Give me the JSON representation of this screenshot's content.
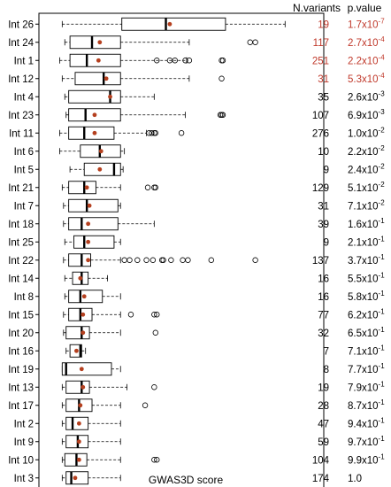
{
  "chart_data": {
    "type": "boxplot",
    "xlabel": "GWAS3D score",
    "x_ticks": [
      0,
      5,
      10,
      15,
      20
    ],
    "xlim": [
      0,
      20
    ],
    "column_headers": {
      "n_variants": "N.variants",
      "p_value": "p.value"
    },
    "colors": {
      "box_stroke": "#000000",
      "mean_dot": "#b5401f",
      "significant_text": "#c0392b",
      "normal_text": "#000000"
    },
    "rows": [
      {
        "label": "Int 26",
        "n": "19",
        "p_base": "1.7x10",
        "p_exp": "-7",
        "significant": true,
        "whislo": 0.5,
        "q1": 5.1,
        "median": 8.5,
        "q3": 13.1,
        "whishi": 17.7,
        "mean": 8.8,
        "outliers": []
      },
      {
        "label": "Int 24",
        "n": "117",
        "p_base": "2.7x10",
        "p_exp": "-4",
        "significant": true,
        "whislo": 0.7,
        "q1": 1.1,
        "median": 2.8,
        "q3": 5.0,
        "whishi": 10.3,
        "mean": 3.4,
        "outliers": [
          15.0,
          15.4
        ]
      },
      {
        "label": "Int 1",
        "n": "251",
        "p_base": "2.2x10",
        "p_exp": "-4",
        "significant": true,
        "whislo": 0.3,
        "q1": 1.1,
        "median": 2.4,
        "q3": 5.0,
        "whishi": 10.1,
        "mean": 3.3,
        "outliers": [
          7.8,
          8.8,
          9.2,
          10.0,
          10.3,
          12.8,
          12.9
        ]
      },
      {
        "label": "Int 12",
        "n": "31",
        "p_base": "5.3x10",
        "p_exp": "-4",
        "significant": true,
        "whislo": 0.5,
        "q1": 1.5,
        "median": 3.7,
        "q3": 5.0,
        "whishi": 10.3,
        "mean": 3.9,
        "outliers": [
          12.8
        ]
      },
      {
        "label": "Int 4",
        "n": "35",
        "p_base": "2.6x10",
        "p_exp": "-3",
        "significant": false,
        "whislo": 0.7,
        "q1": 1.0,
        "median": 4.2,
        "q3": 5.0,
        "whishi": 7.6,
        "mean": 4.2,
        "outliers": []
      },
      {
        "label": "Int 23",
        "n": "107",
        "p_base": "6.9x10",
        "p_exp": "-3",
        "significant": false,
        "whislo": 0.8,
        "q1": 1.0,
        "median": 2.3,
        "q3": 5.0,
        "whishi": 10.0,
        "mean": 3.0,
        "outliers": [
          12.7,
          12.8,
          12.9
        ]
      },
      {
        "label": "Int 11",
        "n": "276",
        "p_base": "1.0x10",
        "p_exp": "-2",
        "significant": false,
        "whislo": 0.3,
        "q1": 1.0,
        "median": 2.2,
        "q3": 4.5,
        "whishi": 7.0,
        "mean": 3.0,
        "outliers": [
          7.2,
          7.4,
          7.6,
          7.7,
          9.7
        ]
      },
      {
        "label": "Int 6",
        "n": "10",
        "p_base": "2.2x10",
        "p_exp": "-2",
        "significant": false,
        "whislo": 0.3,
        "q1": 1.9,
        "median": 3.4,
        "q3": 5.0,
        "whishi": 5.3,
        "mean": 3.5,
        "outliers": []
      },
      {
        "label": "Int 5",
        "n": "9",
        "p_base": "2.4x10",
        "p_exp": "-2",
        "significant": false,
        "whislo": 1.1,
        "q1": 2.2,
        "median": 4.5,
        "q3": 5.0,
        "whishi": 5.2,
        "mean": 3.4,
        "outliers": []
      },
      {
        "label": "Int 21",
        "n": "129",
        "p_base": "5.1x10",
        "p_exp": "-2",
        "significant": false,
        "whislo": 0.5,
        "q1": 1.0,
        "median": 2.2,
        "q3": 3.1,
        "whishi": 5.0,
        "mean": 2.4,
        "outliers": [
          7.1,
          7.6,
          7.7
        ]
      },
      {
        "label": "Int 7",
        "n": "31",
        "p_base": "7.1x10",
        "p_exp": "-2",
        "significant": false,
        "whislo": 0.6,
        "q1": 1.0,
        "median": 2.4,
        "q3": 4.8,
        "whishi": 5.0,
        "mean": 2.6,
        "outliers": []
      },
      {
        "label": "Int 18",
        "n": "39",
        "p_base": "1.6x10",
        "p_exp": "-1",
        "significant": false,
        "whislo": 0.6,
        "q1": 1.0,
        "median": 2.0,
        "q3": 4.8,
        "whishi": 7.6,
        "mean": 2.5,
        "outliers": []
      },
      {
        "label": "Int 25",
        "n": "9",
        "p_base": "2.1x10",
        "p_exp": "-1",
        "significant": false,
        "whislo": 0.7,
        "q1": 1.4,
        "median": 2.2,
        "q3": 4.5,
        "whishi": 5.0,
        "mean": 2.5,
        "outliers": []
      },
      {
        "label": "Int 22",
        "n": "137",
        "p_base": "3.7x10",
        "p_exp": "-1",
        "significant": false,
        "whislo": 0.6,
        "q1": 1.0,
        "median": 2.0,
        "q3": 2.7,
        "whishi": 5.0,
        "mean": 2.5,
        "outliers": [
          5.3,
          5.7,
          6.3,
          7.0,
          7.5,
          8.2,
          8.3,
          8.9,
          9.8,
          10.2,
          12.0,
          15.4
        ]
      },
      {
        "label": "Int 14",
        "n": "16",
        "p_base": "5.5x10",
        "p_exp": "-1",
        "significant": false,
        "whislo": 0.7,
        "q1": 1.3,
        "median": 2.0,
        "q3": 2.5,
        "whishi": 4.0,
        "mean": 1.9,
        "outliers": []
      },
      {
        "label": "Int 8",
        "n": "16",
        "p_base": "5.8x10",
        "p_exp": "-1",
        "significant": false,
        "whislo": 0.7,
        "q1": 1.0,
        "median": 1.9,
        "q3": 3.6,
        "whishi": 5.0,
        "mean": 2.2,
        "outliers": []
      },
      {
        "label": "Int 15",
        "n": "77",
        "p_base": "6.2x10",
        "p_exp": "-1",
        "significant": false,
        "whislo": 0.6,
        "q1": 1.0,
        "median": 1.9,
        "q3": 2.8,
        "whishi": 5.0,
        "mean": 2.1,
        "outliers": [
          5.8,
          7.6,
          7.8
        ]
      },
      {
        "label": "Int 20",
        "n": "32",
        "p_base": "6.5x10",
        "p_exp": "-1",
        "significant": false,
        "whislo": 0.6,
        "q1": 0.8,
        "median": 2.0,
        "q3": 2.6,
        "whishi": 5.0,
        "mean": 2.1,
        "outliers": [
          7.7
        ]
      },
      {
        "label": "Int 16",
        "n": "7",
        "p_base": "7.1x10",
        "p_exp": "-1",
        "significant": false,
        "whislo": 0.8,
        "q1": 1.1,
        "median": 1.9,
        "q3": 2.0,
        "whishi": 2.3,
        "mean": 1.6,
        "outliers": []
      },
      {
        "label": "Int 19",
        "n": "8",
        "p_base": "7.7x10",
        "p_exp": "-1",
        "significant": false,
        "whislo": 0.5,
        "q1": 0.5,
        "median": 0.8,
        "q3": 4.3,
        "whishi": 5.0,
        "mean": 2.0,
        "outliers": []
      },
      {
        "label": "Int 13",
        "n": "19",
        "p_base": "7.9x10",
        "p_exp": "-1",
        "significant": false,
        "whislo": 0.5,
        "q1": 0.8,
        "median": 2.0,
        "q3": 2.6,
        "whishi": 5.5,
        "mean": 2.1,
        "outliers": [
          7.6
        ]
      },
      {
        "label": "Int 17",
        "n": "28",
        "p_base": "8.7x10",
        "p_exp": "-1",
        "significant": false,
        "whislo": 0.5,
        "q1": 0.8,
        "median": 1.8,
        "q3": 2.8,
        "whishi": 5.0,
        "mean": 1.9,
        "outliers": [
          6.9
        ]
      },
      {
        "label": "Int 2",
        "n": "47",
        "p_base": "9.4x10",
        "p_exp": "-1",
        "significant": false,
        "whislo": 0.5,
        "q1": 0.8,
        "median": 1.3,
        "q3": 2.5,
        "whishi": 5.0,
        "mean": 1.8,
        "outliers": []
      },
      {
        "label": "Int 9",
        "n": "59",
        "p_base": "9.7x10",
        "p_exp": "-1",
        "significant": false,
        "whislo": 0.5,
        "q1": 0.8,
        "median": 1.7,
        "q3": 2.5,
        "whishi": 5.0,
        "mean": 1.8,
        "outliers": []
      },
      {
        "label": "Int 10",
        "n": "104",
        "p_base": "9.9x10",
        "p_exp": "-1",
        "significant": false,
        "whislo": 0.5,
        "q1": 0.7,
        "median": 1.6,
        "q3": 2.4,
        "whishi": 5.0,
        "mean": 1.8,
        "outliers": [
          7.6,
          7.8
        ]
      },
      {
        "label": "Int 3",
        "n": "174",
        "p_base": "1.0",
        "p_exp": "",
        "significant": false,
        "whislo": 0.5,
        "q1": 0.8,
        "median": 1.2,
        "q3": 2.5,
        "whishi": 5.0,
        "mean": 1.5,
        "outliers": []
      }
    ]
  }
}
